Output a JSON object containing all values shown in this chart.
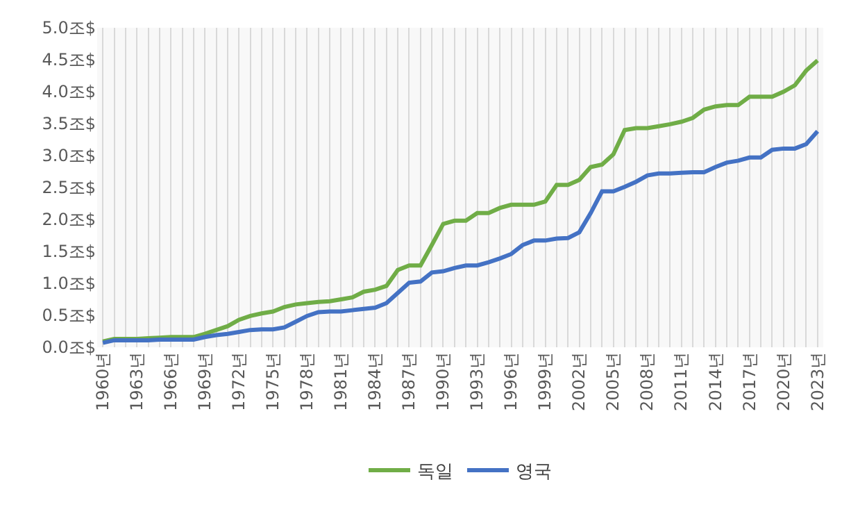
{
  "chart_data": {
    "type": "line",
    "categories": [
      "1960년",
      null,
      null,
      "1963년",
      null,
      null,
      "1966년",
      null,
      null,
      "1969년",
      null,
      null,
      "1972년",
      null,
      null,
      "1975년",
      null,
      null,
      "1978년",
      null,
      null,
      "1981년",
      null,
      null,
      "1984년",
      null,
      null,
      "1987년",
      null,
      null,
      "1990년",
      null,
      null,
      "1993년",
      null,
      null,
      "1996년",
      null,
      null,
      "1999년",
      null,
      null,
      "2002년",
      null,
      null,
      "2005년",
      null,
      null,
      "2008년",
      null,
      null,
      "2011년",
      null,
      null,
      "2014년",
      null,
      null,
      "2017년",
      null,
      null,
      "2020년",
      null,
      null,
      "2023년"
    ],
    "series": [
      {
        "name": "독일",
        "color": "#70ad47",
        "values": [
          0.09,
          0.13,
          0.13,
          0.13,
          0.14,
          0.15,
          0.16,
          0.16,
          0.16,
          0.21,
          0.27,
          0.33,
          0.43,
          0.49,
          0.53,
          0.56,
          0.63,
          0.67,
          0.69,
          0.71,
          0.72,
          0.75,
          0.78,
          0.87,
          0.9,
          0.96,
          1.21,
          1.28,
          1.28,
          1.6,
          1.93,
          1.98,
          1.98,
          2.1,
          2.1,
          2.18,
          2.23,
          2.23,
          2.23,
          2.28,
          2.54,
          2.54,
          2.62,
          2.82,
          2.86,
          3.02,
          3.4,
          3.43,
          3.43,
          3.46,
          3.49,
          3.53,
          3.59,
          3.72,
          3.77,
          3.79,
          3.79,
          3.92,
          3.92,
          3.92,
          4.0,
          4.1,
          4.33,
          4.49
        ]
      },
      {
        "name": "영국",
        "color": "#4472c4",
        "values": [
          0.07,
          0.11,
          0.11,
          0.11,
          0.11,
          0.12,
          0.12,
          0.12,
          0.12,
          0.16,
          0.19,
          0.21,
          0.24,
          0.27,
          0.28,
          0.28,
          0.31,
          0.4,
          0.49,
          0.55,
          0.56,
          0.56,
          0.58,
          0.6,
          0.62,
          0.69,
          0.85,
          1.01,
          1.03,
          1.17,
          1.19,
          1.24,
          1.28,
          1.28,
          1.33,
          1.39,
          1.46,
          1.6,
          1.67,
          1.67,
          1.7,
          1.71,
          1.8,
          2.1,
          2.44,
          2.44,
          2.51,
          2.59,
          2.69,
          2.72,
          2.72,
          2.73,
          2.74,
          2.74,
          2.82,
          2.89,
          2.92,
          2.97,
          2.97,
          3.09,
          3.11,
          3.11,
          3.18,
          3.38
        ]
      }
    ],
    "ylim": [
      0,
      5.0
    ],
    "yticks": [
      {
        "value": 0,
        "label": "0.0조$"
      },
      {
        "value": 0.5,
        "label": "0.5조$"
      },
      {
        "value": 1.0,
        "label": "1.0조$"
      },
      {
        "value": 1.5,
        "label": "1.5조$"
      },
      {
        "value": 2.0,
        "label": "2.0조$"
      },
      {
        "value": 2.5,
        "label": "2.5조$"
      },
      {
        "value": 3.0,
        "label": "3.0조$"
      },
      {
        "value": 3.5,
        "label": "3.5조$"
      },
      {
        "value": 4.0,
        "label": "4.0조$"
      },
      {
        "value": 4.5,
        "label": "4.5조$"
      },
      {
        "value": 5.0,
        "label": "5.0조$"
      }
    ],
    "grid": "x",
    "legend": "bottom",
    "marker": "none",
    "line_style": "solid"
  }
}
